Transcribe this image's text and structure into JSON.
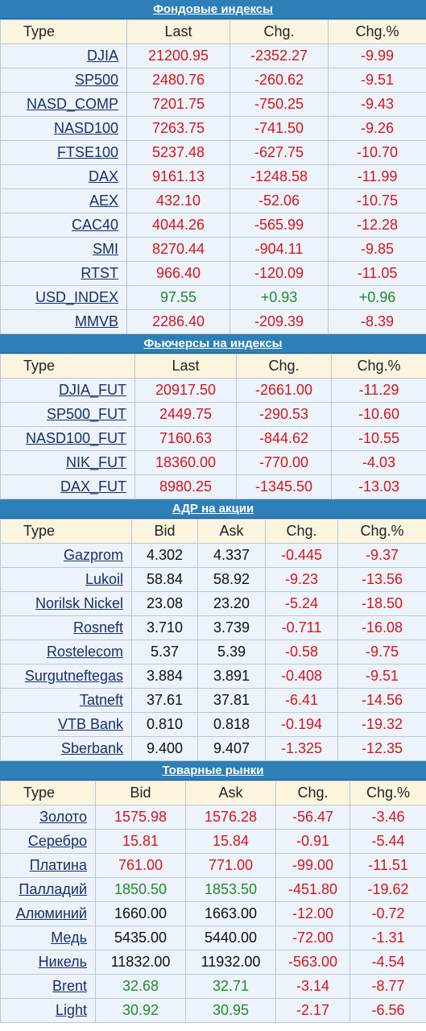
{
  "sections": [
    {
      "id": "indices",
      "title": "Фондовые индексы",
      "columns": [
        "Type",
        "Last",
        "Chg.",
        "Chg.%"
      ],
      "widths": [
        157,
        128,
        122,
        102
      ],
      "rows": [
        {
          "name": "DJIA",
          "values": [
            "21200.95",
            "-2352.27",
            "-9.99"
          ],
          "colors": [
            "neg",
            "neg",
            "neg"
          ]
        },
        {
          "name": "SP500",
          "values": [
            "2480.76",
            "-260.62",
            "-9.51"
          ],
          "colors": [
            "neg",
            "neg",
            "neg"
          ]
        },
        {
          "name": "NASD_COMP",
          "values": [
            "7201.75",
            "-750.25",
            "-9.43"
          ],
          "colors": [
            "neg",
            "neg",
            "neg"
          ]
        },
        {
          "name": "NASD100",
          "values": [
            "7263.75",
            "-741.50",
            "-9.26"
          ],
          "colors": [
            "neg",
            "neg",
            "neg"
          ]
        },
        {
          "name": "FTSE100",
          "values": [
            "5237.48",
            "-627.75",
            "-10.70"
          ],
          "colors": [
            "neg",
            "neg",
            "neg"
          ]
        },
        {
          "name": "DAX",
          "values": [
            "9161.13",
            "-1248.58",
            "-11.99"
          ],
          "colors": [
            "neg",
            "neg",
            "neg"
          ]
        },
        {
          "name": "AEX",
          "values": [
            "432.10",
            "-52.06",
            "-10.75"
          ],
          "colors": [
            "neg",
            "neg",
            "neg"
          ]
        },
        {
          "name": "CAC40",
          "values": [
            "4044.26",
            "-565.99",
            "-12.28"
          ],
          "colors": [
            "neg",
            "neg",
            "neg"
          ]
        },
        {
          "name": "SMI",
          "values": [
            "8270.44",
            "-904.11",
            "-9.85"
          ],
          "colors": [
            "neg",
            "neg",
            "neg"
          ]
        },
        {
          "name": "RTST",
          "values": [
            "966.40",
            "-120.09",
            "-11.05"
          ],
          "colors": [
            "neg",
            "neg",
            "neg"
          ]
        },
        {
          "name": "USD_INDEX",
          "values": [
            "97.55",
            "+0.93",
            "+0.96"
          ],
          "colors": [
            "pos",
            "pos",
            "pos"
          ]
        },
        {
          "name": "MMVB",
          "values": [
            "2286.40",
            "-209.39",
            "-8.39"
          ],
          "colors": [
            "neg",
            "neg",
            "neg"
          ]
        }
      ]
    },
    {
      "id": "futures",
      "title": "Фьючерсы на индексы",
      "columns": [
        "Type",
        "Last",
        "Chg.",
        "Chg.%"
      ],
      "widths": [
        167,
        126,
        118,
        118
      ],
      "rows": [
        {
          "name": "DJIA_FUT",
          "values": [
            "20917.50",
            "-2661.00",
            "-11.29"
          ],
          "colors": [
            "neg",
            "neg",
            "neg"
          ]
        },
        {
          "name": "SP500_FUT",
          "values": [
            "2449.75",
            "-290.53",
            "-10.60"
          ],
          "colors": [
            "neg",
            "neg",
            "neg"
          ]
        },
        {
          "name": "NASD100_FUT",
          "values": [
            "7160.63",
            "-844.62",
            "-10.55"
          ],
          "colors": [
            "neg",
            "neg",
            "neg"
          ]
        },
        {
          "name": "NIK_FUT",
          "values": [
            "18360.00",
            "-770.00",
            "-4.03"
          ],
          "colors": [
            "neg",
            "neg",
            "neg"
          ]
        },
        {
          "name": "DAX_FUT",
          "values": [
            "8980.25",
            "-1345.50",
            "-13.03"
          ],
          "colors": [
            "neg",
            "neg",
            "neg"
          ]
        }
      ]
    },
    {
      "id": "adr",
      "title": "АДР на акции",
      "columns": [
        "Type",
        "Bid",
        "Ask",
        "Chg.",
        "Chg.%"
      ],
      "widths": [
        163,
        82,
        84,
        90,
        98
      ],
      "rows": [
        {
          "name": "Gazprom",
          "values": [
            "4.302",
            "4.337",
            "-0.445",
            "-9.37"
          ],
          "colors": [
            "neu",
            "neu",
            "neg",
            "neg"
          ]
        },
        {
          "name": "Lukoil",
          "values": [
            "58.84",
            "58.92",
            "-9.23",
            "-13.56"
          ],
          "colors": [
            "neu",
            "neu",
            "neg",
            "neg"
          ]
        },
        {
          "name": "Norilsk Nickel",
          "values": [
            "23.08",
            "23.20",
            "-5.24",
            "-18.50"
          ],
          "colors": [
            "neu",
            "neu",
            "neg",
            "neg"
          ]
        },
        {
          "name": "Rosneft",
          "values": [
            "3.710",
            "3.739",
            "-0.711",
            "-16.08"
          ],
          "colors": [
            "neu",
            "neu",
            "neg",
            "neg"
          ]
        },
        {
          "name": "Rostelecom",
          "values": [
            "5.37",
            "5.39",
            "-0.58",
            "-9.75"
          ],
          "colors": [
            "neu",
            "neu",
            "neg",
            "neg"
          ]
        },
        {
          "name": "Surgutneftegas",
          "values": [
            "3.884",
            "3.891",
            "-0.408",
            "-9.51"
          ],
          "colors": [
            "neu",
            "neu",
            "neg",
            "neg"
          ]
        },
        {
          "name": "Tatneft",
          "values": [
            "37.61",
            "37.81",
            "-6.41",
            "-14.56"
          ],
          "colors": [
            "neu",
            "neu",
            "neg",
            "neg"
          ]
        },
        {
          "name": "VTB Bank",
          "values": [
            "0.810",
            "0.818",
            "-0.194",
            "-19.32"
          ],
          "colors": [
            "neu",
            "neu",
            "neg",
            "neg"
          ]
        },
        {
          "name": "Sberbank",
          "values": [
            "9.400",
            "9.407",
            "-1.325",
            "-12.35"
          ],
          "colors": [
            "neu",
            "neu",
            "neg",
            "neg"
          ]
        }
      ]
    },
    {
      "id": "commodities",
      "title": "Товарные рынки",
      "columns": [
        "Type",
        "Bid",
        "Ask",
        "Chg.",
        "Chg.%"
      ],
      "widths": [
        118,
        112,
        112,
        92,
        95
      ],
      "rows": [
        {
          "name": "Золото",
          "values": [
            "1575.98",
            "1576.28",
            "-56.47",
            "-3.46"
          ],
          "colors": [
            "neg",
            "neg",
            "neg",
            "neg"
          ]
        },
        {
          "name": "Серебро",
          "values": [
            "15.81",
            "15.84",
            "-0.91",
            "-5.44"
          ],
          "colors": [
            "neg",
            "neg",
            "neg",
            "neg"
          ]
        },
        {
          "name": "Платина",
          "values": [
            "761.00",
            "771.00",
            "-99.00",
            "-11.51"
          ],
          "colors": [
            "neg",
            "neg",
            "neg",
            "neg"
          ]
        },
        {
          "name": "Палладий",
          "values": [
            "1850.50",
            "1853.50",
            "-451.80",
            "-19.62"
          ],
          "colors": [
            "pos",
            "pos",
            "neg",
            "neg"
          ]
        },
        {
          "name": "Алюминий",
          "values": [
            "1660.00",
            "1663.00",
            "-12.00",
            "-0.72"
          ],
          "colors": [
            "neu",
            "neu",
            "neg",
            "neg"
          ]
        },
        {
          "name": "Медь",
          "values": [
            "5435.00",
            "5440.00",
            "-72.00",
            "-1.31"
          ],
          "colors": [
            "neu",
            "neu",
            "neg",
            "neg"
          ]
        },
        {
          "name": "Никель",
          "values": [
            "11832.00",
            "11932.00",
            "-563.00",
            "-4.54"
          ],
          "colors": [
            "neu",
            "neu",
            "neg",
            "neg"
          ]
        },
        {
          "name": "Brent",
          "values": [
            "32.68",
            "32.71",
            "-3.14",
            "-8.77"
          ],
          "colors": [
            "pos",
            "pos",
            "neg",
            "neg"
          ]
        },
        {
          "name": "Light",
          "values": [
            "30.92",
            "30.95",
            "-2.17",
            "-6.56"
          ],
          "colors": [
            "pos",
            "pos",
            "neg",
            "neg"
          ]
        }
      ]
    }
  ]
}
